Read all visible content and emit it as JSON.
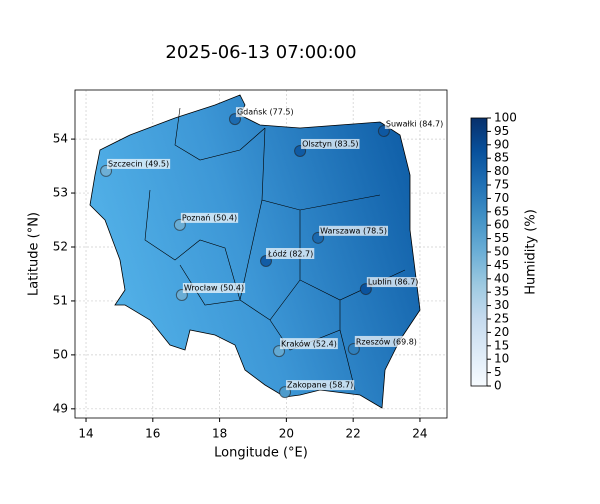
{
  "chart_data": {
    "type": "map",
    "title": "2025-06-13 07:00:00",
    "xlabel": "Longitude (°E)",
    "ylabel": "Latitude (°N)",
    "colorbar_label": "Humidity (%)",
    "colormap": "Blues",
    "xlim": [
      13.67,
      24.81
    ],
    "ylim": [
      48.83,
      54.91
    ],
    "xticks": [
      14,
      16,
      18,
      20,
      22,
      24
    ],
    "yticks": [
      49,
      50,
      51,
      52,
      53,
      54
    ],
    "clim": [
      0,
      100
    ],
    "cticks": [
      0,
      5,
      10,
      15,
      20,
      25,
      30,
      35,
      40,
      45,
      50,
      55,
      60,
      65,
      70,
      75,
      80,
      85,
      90,
      95,
      100
    ],
    "grid": true,
    "points": {
      "labels": [
        "Gdańsk (77.5)",
        "Suwałki (84.7)",
        "Szczecin (49.5)",
        "Olsztyn (83.5)",
        "Poznań (50.4)",
        "Warszawa (78.5)",
        "Łódź (82.7)",
        "Lublin (86.7)",
        "Wrocław (50.4)",
        "Kraków (52.4)",
        "Rzeszów (69.8)",
        "Zakopane (58.7)"
      ],
      "lon": [
        18.46,
        22.92,
        14.6,
        20.41,
        16.81,
        20.95,
        19.39,
        22.38,
        16.87,
        19.78,
        22.02,
        19.96
      ],
      "lat": [
        54.37,
        54.15,
        53.41,
        53.78,
        52.41,
        52.17,
        51.74,
        51.22,
        51.11,
        50.07,
        50.11,
        49.31
      ],
      "values": [
        77.5,
        84.7,
        49.5,
        83.5,
        50.4,
        78.5,
        82.7,
        86.7,
        50.4,
        52.4,
        69.8,
        58.7
      ]
    }
  }
}
